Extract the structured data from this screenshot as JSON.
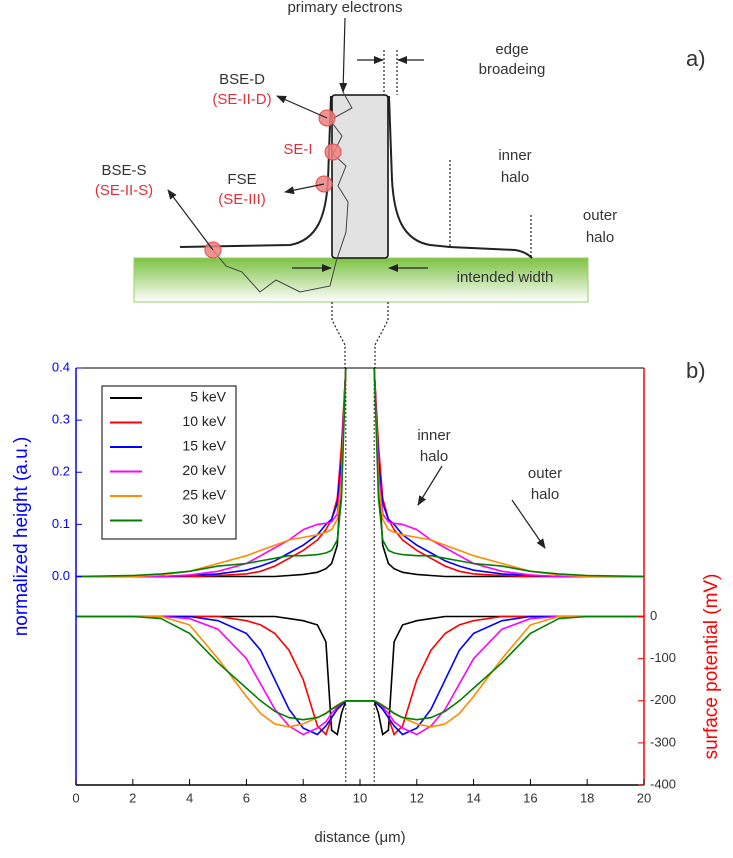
{
  "diagram": {
    "panel_a": "a)",
    "panel_b": "b)",
    "primary_electrons": "primary electrons",
    "edge_broadening": [
      "edge",
      "broadeing"
    ],
    "bse_d": "BSE-D",
    "se_ii_d": "(SE-II-D)",
    "se_i": "SE-I",
    "fse": "FSE",
    "se_iii": "(SE-III)",
    "bse_s": "BSE-S",
    "se_ii_s": "(SE-II-S)",
    "inner_halo": [
      "inner",
      "halo"
    ],
    "outer_halo": [
      "outer",
      "halo"
    ],
    "intended_width": "intended width"
  },
  "chart_data": {
    "type": "line",
    "xlabel": "distance (μm)",
    "ylabel": "normalized height (a.u.)",
    "y2label": "surface potential (mV)",
    "ylabel_color": "#0000ff",
    "y2label_color": "#ff0000",
    "xlim": [
      0,
      20
    ],
    "xticks": [
      0,
      2,
      4,
      6,
      8,
      10,
      12,
      14,
      16,
      18,
      20
    ],
    "ylim": [
      -0.4,
      0.4
    ],
    "yticks": [
      {
        "value": 0,
        "label": "0.0"
      },
      {
        "value": 0.1,
        "label": "0.1"
      },
      {
        "value": 0.2,
        "label": "0.2"
      },
      {
        "value": 0.3,
        "label": "0.3"
      },
      {
        "value": 0.4,
        "label": "0.4"
      }
    ],
    "y2lim": [
      -400,
      590
    ],
    "y2ticks": [
      0,
      -100,
      -200,
      -300,
      -400
    ],
    "legend": "upper left",
    "annotations": [
      {
        "lines": [
          "inner",
          "halo"
        ]
      },
      {
        "lines": [
          "outer",
          "halo"
        ]
      }
    ],
    "x": [
      0,
      2,
      3,
      4,
      5,
      6,
      6.5,
      7,
      7.5,
      8,
      8.5,
      8.8,
      9,
      9.2,
      9.35,
      9.5,
      10,
      10.5,
      10.65,
      10.8,
      11,
      11.2,
      11.5,
      12,
      12.5,
      13,
      13.5,
      14,
      15,
      16,
      17,
      18,
      20
    ],
    "series": [
      {
        "name": "5 keV",
        "color": "#000000",
        "values": [
          0,
          0,
          0,
          0,
          0,
          0,
          0,
          0,
          0.002,
          0.004,
          0.008,
          0.015,
          0.025,
          0.06,
          0.2,
          0.4,
          null,
          0.4,
          0.2,
          0.06,
          0.025,
          0.015,
          0.008,
          0.004,
          0.002,
          0,
          0,
          0,
          0,
          0,
          0,
          0,
          0
        ]
      },
      {
        "name": "10 keV",
        "color": "#ff0000",
        "values": [
          0,
          0,
          0,
          0,
          0.002,
          0.005,
          0.01,
          0.02,
          0.035,
          0.05,
          0.07,
          0.09,
          0.11,
          0.15,
          0.25,
          0.4,
          null,
          0.4,
          0.25,
          0.15,
          0.11,
          0.09,
          0.07,
          0.05,
          0.035,
          0.02,
          0.01,
          0.005,
          0.002,
          0,
          0,
          0,
          0
        ]
      },
      {
        "name": "15 keV",
        "color": "#0000ff",
        "values": [
          0,
          0,
          0,
          0.002,
          0.005,
          0.012,
          0.02,
          0.03,
          0.045,
          0.06,
          0.08,
          0.1,
          0.11,
          0.14,
          0.22,
          0.4,
          null,
          0.4,
          0.22,
          0.14,
          0.11,
          0.1,
          0.08,
          0.06,
          0.045,
          0.03,
          0.02,
          0.012,
          0.005,
          0.002,
          0,
          0,
          0
        ]
      },
      {
        "name": "20 keV",
        "color": "#ff00ff",
        "values": [
          0,
          0,
          0,
          0.003,
          0.01,
          0.025,
          0.04,
          0.055,
          0.07,
          0.09,
          0.1,
          0.102,
          0.105,
          0.12,
          0.2,
          0.4,
          null,
          0.4,
          0.2,
          0.12,
          0.105,
          0.102,
          0.1,
          0.09,
          0.07,
          0.055,
          0.04,
          0.025,
          0.01,
          0.003,
          0,
          0,
          0
        ]
      },
      {
        "name": "25 keV",
        "color": "#ff8c00",
        "values": [
          0,
          0,
          0.003,
          0.01,
          0.025,
          0.04,
          0.05,
          0.06,
          0.07,
          0.075,
          0.08,
          0.085,
          0.09,
          0.11,
          0.18,
          0.4,
          null,
          0.4,
          0.18,
          0.11,
          0.09,
          0.085,
          0.08,
          0.075,
          0.07,
          0.06,
          0.05,
          0.04,
          0.025,
          0.01,
          0.003,
          0,
          0
        ]
      },
      {
        "name": "30 keV",
        "color": "#008000",
        "values": [
          0,
          0.002,
          0.005,
          0.01,
          0.02,
          0.025,
          0.03,
          0.035,
          0.04,
          0.04,
          0.042,
          0.045,
          0.05,
          0.07,
          0.15,
          0.4,
          null,
          0.4,
          0.15,
          0.07,
          0.05,
          0.045,
          0.042,
          0.04,
          0.04,
          0.035,
          0.03,
          0.025,
          0.02,
          0.01,
          0.005,
          0.002,
          0
        ]
      },
      {
        "color": "#000000",
        "axis": "y2",
        "values": [
          0,
          0,
          0,
          0,
          0,
          0,
          0,
          0,
          -5,
          -10,
          -20,
          -60,
          -270,
          -280,
          -230,
          -200,
          -200,
          -200,
          -230,
          -280,
          -270,
          -60,
          -20,
          -10,
          -5,
          0,
          0,
          0,
          0,
          0,
          0,
          0,
          0
        ]
      },
      {
        "color": "#ff0000",
        "axis": "y2",
        "values": [
          0,
          0,
          0,
          0,
          0,
          -10,
          -20,
          -40,
          -80,
          -150,
          -260,
          -280,
          -240,
          -220,
          -210,
          -200,
          -200,
          -200,
          -210,
          -220,
          -240,
          -280,
          -260,
          -150,
          -80,
          -40,
          -20,
          -10,
          0,
          0,
          0,
          0,
          0
        ]
      },
      {
        "color": "#0000ff",
        "axis": "y2",
        "values": [
          0,
          0,
          0,
          0,
          -10,
          -40,
          -80,
          -150,
          -220,
          -265,
          -280,
          -260,
          -240,
          -220,
          -210,
          -200,
          -200,
          -200,
          -210,
          -220,
          -240,
          -260,
          -280,
          -265,
          -220,
          -150,
          -80,
          -40,
          -10,
          0,
          0,
          0,
          0
        ]
      },
      {
        "color": "#ff00ff",
        "axis": "y2",
        "values": [
          0,
          0,
          0,
          -5,
          -30,
          -100,
          -160,
          -220,
          -260,
          -280,
          -265,
          -250,
          -230,
          -215,
          -205,
          -200,
          -200,
          -200,
          -205,
          -215,
          -230,
          -250,
          -265,
          -280,
          -260,
          -220,
          -160,
          -100,
          -30,
          -5,
          0,
          0,
          0
        ]
      },
      {
        "color": "#ff8c00",
        "axis": "y2",
        "values": [
          0,
          0,
          0,
          -20,
          -100,
          -190,
          -230,
          -255,
          -262,
          -255,
          -240,
          -230,
          -220,
          -210,
          -205,
          -200,
          -200,
          -200,
          -205,
          -210,
          -220,
          -230,
          -240,
          -255,
          -262,
          -255,
          -230,
          -190,
          -100,
          -20,
          0,
          0,
          0
        ]
      },
      {
        "color": "#008000",
        "axis": "y2",
        "values": [
          0,
          0,
          -5,
          -40,
          -110,
          -170,
          -200,
          -225,
          -240,
          -245,
          -240,
          -230,
          -220,
          -212,
          -205,
          -200,
          -200,
          -200,
          -205,
          -212,
          -220,
          -230,
          -240,
          -245,
          -240,
          -225,
          -200,
          -170,
          -110,
          -40,
          -5,
          0,
          0
        ]
      }
    ]
  }
}
